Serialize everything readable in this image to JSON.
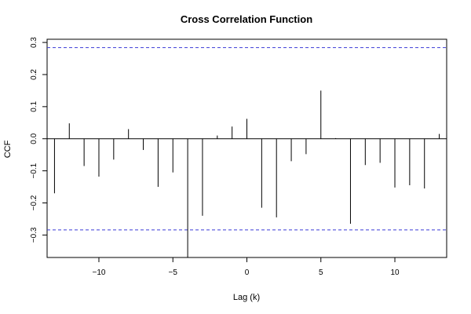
{
  "chart_data": {
    "type": "bar",
    "title": "Cross Correlation Function",
    "xlabel": "Lag (k)",
    "ylabel": "CCF",
    "xlim": [
      -13.5,
      13.5
    ],
    "ylim": [
      -0.37,
      0.31
    ],
    "xticks": [
      -10,
      -5,
      0,
      5,
      10
    ],
    "xtick_labels": [
      "−10",
      "−5",
      "0",
      "5",
      "10"
    ],
    "yticks": [
      -0.3,
      -0.2,
      -0.1,
      0.0,
      0.1,
      0.2,
      0.3
    ],
    "ytick_labels": [
      "−0.3",
      "−0.2",
      "−0.1",
      "0.0",
      "0.1",
      "0.2",
      "0.3"
    ],
    "confidence_bound": 0.284,
    "bound_color": "#3b3bd6",
    "lags": [
      -13,
      -12,
      -11,
      -10,
      -9,
      -8,
      -7,
      -6,
      -5,
      -4,
      -3,
      -2,
      -1,
      0,
      1,
      2,
      3,
      4,
      5,
      6,
      7,
      8,
      9,
      10,
      11,
      12,
      13
    ],
    "values": [
      -0.17,
      0.048,
      -0.085,
      -0.118,
      -0.065,
      0.03,
      -0.035,
      -0.15,
      -0.105,
      -0.37,
      -0.24,
      0.01,
      0.038,
      0.062,
      -0.215,
      -0.245,
      -0.07,
      -0.048,
      0.15,
      0.002,
      -0.265,
      -0.082,
      -0.075,
      -0.152,
      -0.145,
      -0.155,
      0.015
    ]
  }
}
